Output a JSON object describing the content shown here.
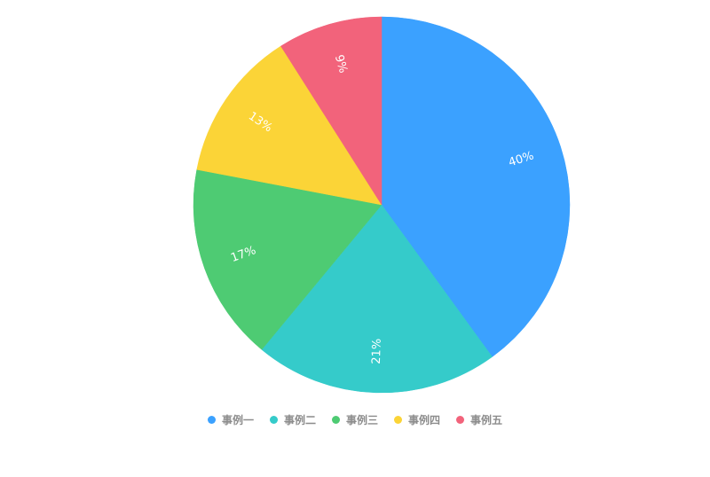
{
  "chart_data": {
    "type": "pie",
    "categories": [
      "事例一",
      "事例二",
      "事例三",
      "事例四",
      "事例五"
    ],
    "values": [
      40,
      21,
      17,
      13,
      9
    ],
    "labels": [
      "40%",
      "21%",
      "17%",
      "13%",
      "9%"
    ],
    "colors": [
      "#3ba1ff",
      "#35cbca",
      "#4ecb73",
      "#fbd437",
      "#f2637b"
    ],
    "legend_position": "bottom"
  }
}
